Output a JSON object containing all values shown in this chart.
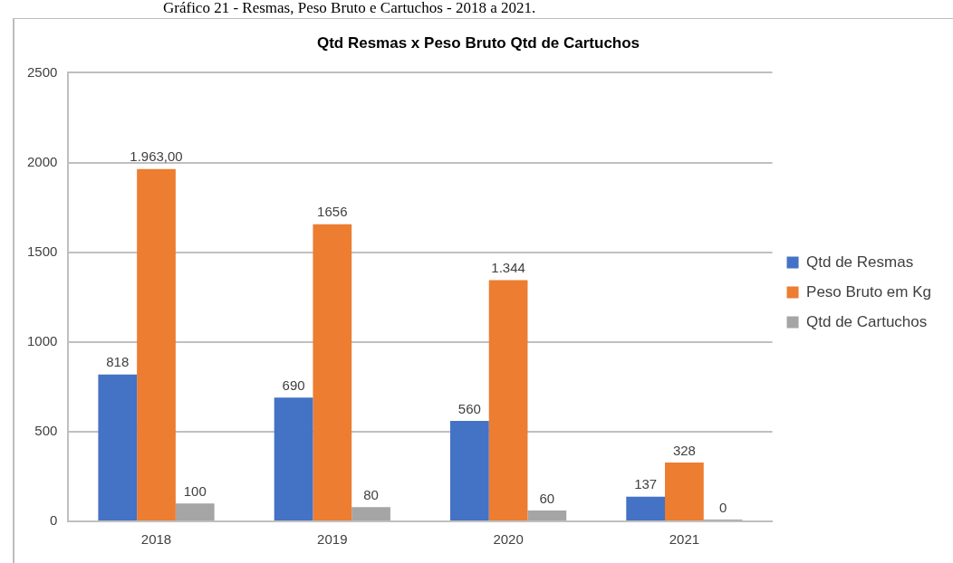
{
  "chart_data": {
    "type": "bar",
    "title": "Qtd Resmas x Peso Bruto Qtd de Cartuchos",
    "annotations": [
      "Gráfico 21 - Resmas, Peso Bruto e Cartuchos - 2018 a 2021."
    ],
    "categories": [
      "2018",
      "2019",
      "2020",
      "2021"
    ],
    "series": [
      {
        "name": "Qtd de Resmas",
        "color": "#4472c4",
        "values": [
          818,
          690,
          560,
          137
        ],
        "value_labels": [
          "818",
          "690",
          "560",
          "137"
        ]
      },
      {
        "name": "Peso Bruto em Kg",
        "color": "#ed7d31",
        "values": [
          1963,
          1656,
          1344,
          328
        ],
        "value_labels": [
          "1.963,00",
          "1656",
          "1.344",
          "328"
        ]
      },
      {
        "name": "Qtd de Cartuchos",
        "color": "#a5a5a5",
        "values": [
          100,
          80,
          60,
          0
        ],
        "value_labels": [
          "100",
          "80",
          "60",
          "0"
        ]
      }
    ],
    "ylim": [
      0,
      2500
    ],
    "yticks": [
      0,
      500,
      1000,
      1500,
      2000,
      2500
    ],
    "grid": "y",
    "legend": "right"
  }
}
